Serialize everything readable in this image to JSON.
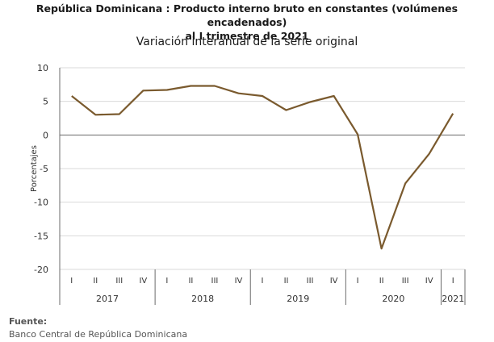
{
  "title_line1": "República Dominicana : Producto interno bruto en constantes (volúmenes encadenados)",
  "title_line2": "al I trimestre de 2021",
  "source_label": "Fuente:",
  "source_text": "Banco Central de República Dominicana",
  "colors": {
    "line": "#7a5a2e",
    "grid": "#d9d9d9",
    "axis": "#6b6b6b"
  },
  "chart_data": {
    "type": "line",
    "title": "Variación interanual de la serie original",
    "ylabel": "Porcentajes",
    "xlabel": "",
    "ylim": [
      -20,
      10
    ],
    "yticks": [
      10,
      5,
      0,
      -5,
      -10,
      -15,
      -20
    ],
    "grid": true,
    "quarters": [
      "I",
      "II",
      "III",
      "IV",
      "I",
      "II",
      "III",
      "IV",
      "I",
      "II",
      "III",
      "IV",
      "I",
      "II",
      "III",
      "IV",
      "I"
    ],
    "years": [
      {
        "label": "2017",
        "count": 4
      },
      {
        "label": "2018",
        "count": 4
      },
      {
        "label": "2019",
        "count": 4
      },
      {
        "label": "2020",
        "count": 4
      },
      {
        "label": "2021",
        "count": 1
      }
    ],
    "series": [
      {
        "values": [
          5.8,
          3.0,
          3.1,
          6.6,
          6.7,
          7.3,
          7.3,
          6.2,
          5.8,
          3.7,
          4.9,
          5.8,
          0.1,
          -16.9,
          -7.2,
          -2.8,
          3.2
        ]
      }
    ]
  }
}
